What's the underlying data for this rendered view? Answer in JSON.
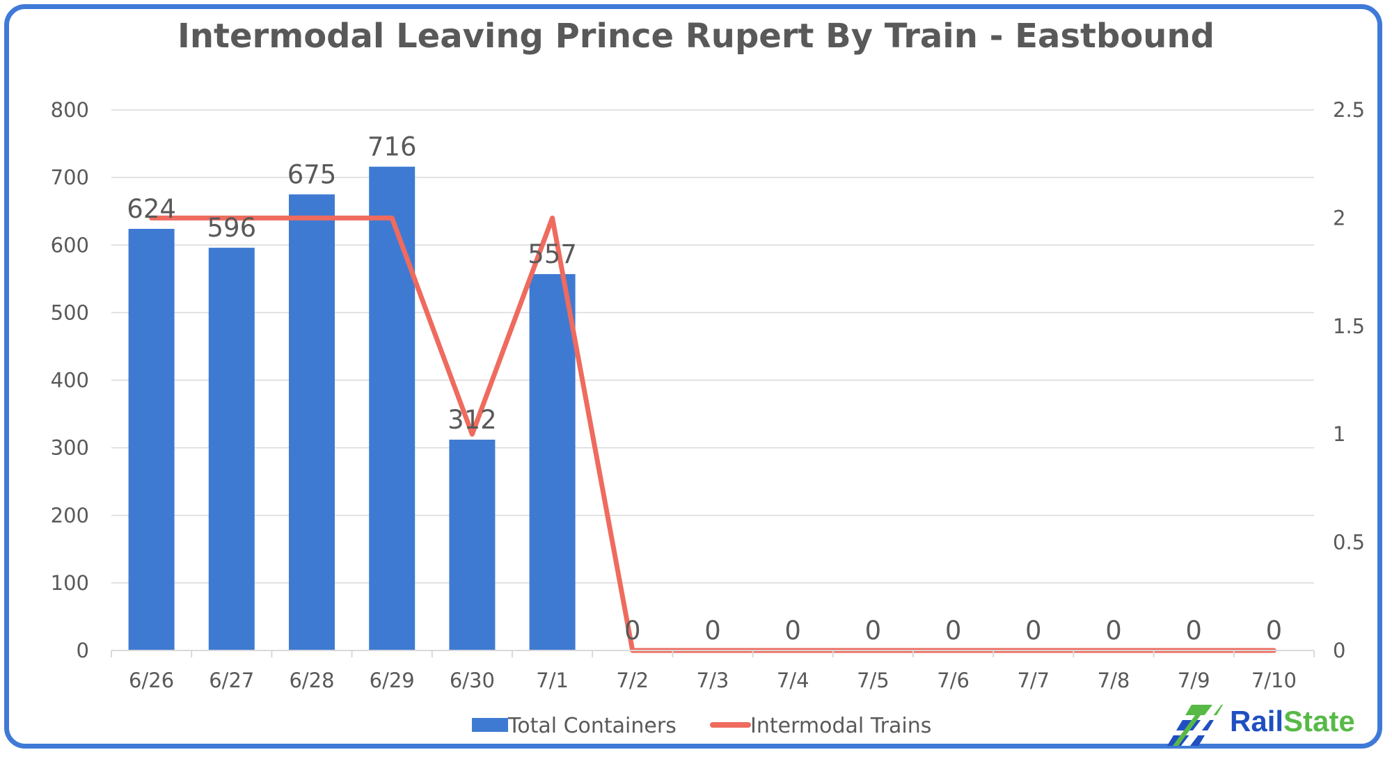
{
  "chart_data": {
    "type": "bar",
    "title": "Intermodal Leaving Prince Rupert By Train - Eastbound",
    "categories": [
      "6/26",
      "6/27",
      "6/28",
      "6/29",
      "6/30",
      "7/1",
      "7/2",
      "7/3",
      "7/4",
      "7/5",
      "7/6",
      "7/7",
      "7/8",
      "7/9",
      "7/10"
    ],
    "series": [
      {
        "name": "Total Containers",
        "type": "bar",
        "axis": "left",
        "color": "#3f7ad2",
        "values": [
          624,
          596,
          675,
          716,
          312,
          557,
          0,
          0,
          0,
          0,
          0,
          0,
          0,
          0,
          0
        ]
      },
      {
        "name": "Intermodal Trains",
        "type": "line",
        "axis": "right",
        "color": "#ee6b5e",
        "values": [
          2,
          2,
          2,
          2,
          1,
          2,
          0,
          0,
          0,
          0,
          0,
          0,
          0,
          0,
          0
        ]
      }
    ],
    "y_left": {
      "range": [
        0,
        800
      ],
      "ticks": [
        "0",
        "100",
        "200",
        "300",
        "400",
        "500",
        "600",
        "700",
        "800"
      ]
    },
    "y_right": {
      "range": [
        0,
        2.5
      ],
      "ticks": [
        "0",
        "0.5",
        "1",
        "1.5",
        "2",
        "2.5"
      ]
    },
    "data_labels": [
      "624",
      "596",
      "675",
      "716",
      "312",
      "557",
      "0",
      "0",
      "0",
      "0",
      "0",
      "0",
      "0",
      "0",
      "0"
    ],
    "grid": true,
    "legend": "bottom"
  },
  "logo": {
    "text_part1": "Rail",
    "text_part2": "State",
    "color1": "#1f4fc0",
    "color2": "#58b947"
  },
  "colors": {
    "frame": "#3f7ad8",
    "text": "#595959",
    "grid": "#d9d9d9"
  }
}
